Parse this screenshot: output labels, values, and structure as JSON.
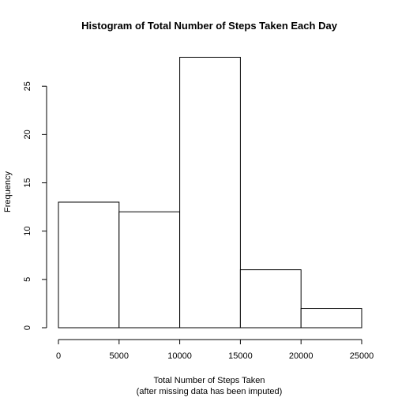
{
  "chart_data": {
    "type": "bar",
    "title": "Histogram of Total Number of Steps Taken Each Day",
    "xlabel": "Total Number of Steps Taken",
    "xlabel_sub": "(after missing data has been imputed)",
    "ylabel": "Frequency",
    "bins": [
      {
        "from": 0,
        "to": 5000,
        "count": 13
      },
      {
        "from": 5000,
        "to": 10000,
        "count": 12
      },
      {
        "from": 10000,
        "to": 15000,
        "count": 28
      },
      {
        "from": 15000,
        "to": 20000,
        "count": 6
      },
      {
        "from": 20000,
        "to": 25000,
        "count": 2
      }
    ],
    "xlim": [
      0,
      25000
    ],
    "ylim": [
      0,
      28
    ],
    "x_ticks": [
      "0",
      "5000",
      "10000",
      "15000",
      "20000",
      "25000"
    ],
    "y_ticks": [
      "0",
      "5",
      "10",
      "15",
      "20",
      "25"
    ],
    "bar_fill": "#ffffff",
    "bar_stroke": "#000000",
    "grid": false
  }
}
